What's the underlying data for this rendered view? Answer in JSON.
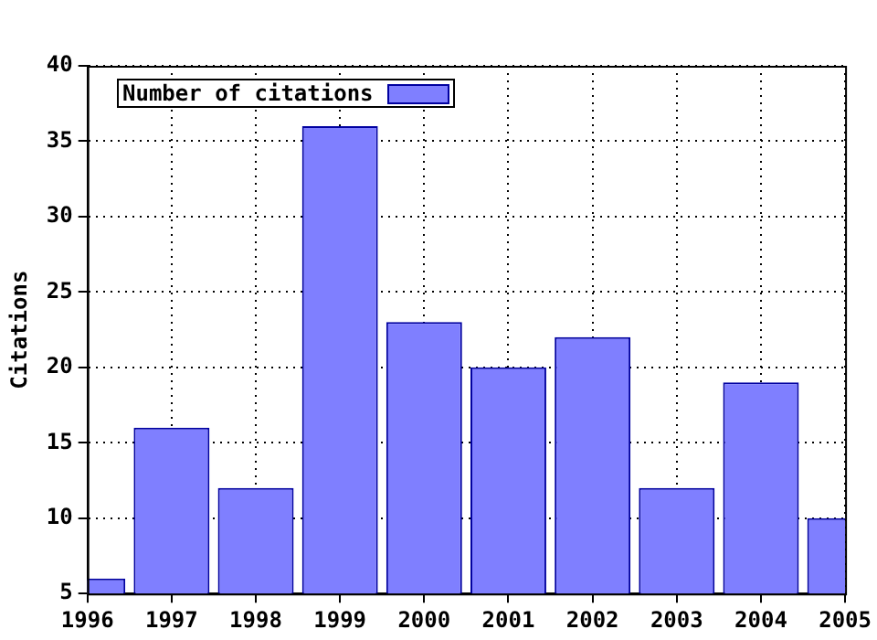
{
  "chart_data": {
    "type": "bar",
    "ylabel": "Citations",
    "x": [
      1996,
      1997,
      1998,
      1999,
      2000,
      2001,
      2002,
      2003,
      2004,
      2005
    ],
    "series": [
      {
        "name": "Number of citations",
        "color": "#7f7fff",
        "values": [
          6,
          16,
          12,
          36,
          23,
          20,
          22,
          12,
          19,
          10
        ]
      }
    ],
    "xlim": [
      1996,
      2005
    ],
    "xticks": [
      1996,
      1997,
      1998,
      1999,
      2000,
      2001,
      2002,
      2003,
      2004,
      2005
    ],
    "ylim": [
      5,
      40
    ],
    "yticks": [
      5,
      10,
      15,
      20,
      25,
      30,
      35,
      40
    ],
    "grid": true,
    "legend": "top left"
  }
}
